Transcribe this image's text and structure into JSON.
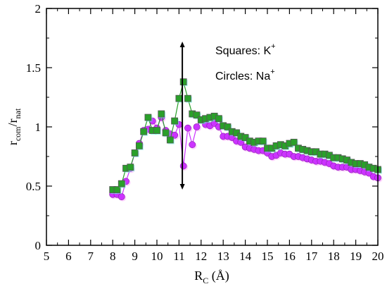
{
  "chart_data": {
    "type": "scatter",
    "xlabel": "R",
    "xlabel_sub": "C",
    "xlabel_unit": " (Å)",
    "ylabel_main": "r",
    "ylabel_sub1": "com",
    "ylabel_sep": "/r",
    "ylabel_sub2": "nat",
    "xlim": [
      5,
      20
    ],
    "ylim": [
      0,
      2
    ],
    "xticks": [
      "5",
      "6",
      "7",
      "8",
      "9",
      "10",
      "11",
      "12",
      "13",
      "14",
      "15",
      "16",
      "17",
      "18",
      "19",
      "20"
    ],
    "yticks": [
      "0",
      "0.5",
      "1",
      "1.5",
      "2"
    ],
    "grid": false,
    "legend": "none",
    "annotations": {
      "squares_label": "Squares: K",
      "squares_sup": "+",
      "circles_label": "Circles: Na",
      "circles_sup": "+"
    },
    "arrow": {
      "x": 11.15,
      "y_top": 1.72,
      "y_bottom": 0.47
    },
    "series": [
      {
        "marker": "square",
        "color": "#2aa02a",
        "edge": "#555555",
        "shadow": "#66ffdd",
        "x": [
          8.0,
          8.2,
          8.4,
          8.6,
          8.8,
          9.0,
          9.2,
          9.4,
          9.6,
          9.8,
          10.0,
          10.2,
          10.4,
          10.6,
          10.8,
          11.0,
          11.2,
          11.4,
          11.6,
          11.8,
          12.0,
          12.2,
          12.4,
          12.6,
          12.8,
          13.0,
          13.2,
          13.4,
          13.6,
          13.8,
          14.0,
          14.2,
          14.4,
          14.6,
          14.8,
          15.0,
          15.2,
          15.4,
          15.6,
          15.8,
          16.0,
          16.2,
          16.4,
          16.6,
          16.8,
          17.0,
          17.2,
          17.4,
          17.6,
          17.8,
          18.0,
          18.2,
          18.4,
          18.6,
          18.8,
          19.0,
          19.2,
          19.4,
          19.6,
          19.8,
          20.0
        ],
        "y": [
          0.47,
          0.47,
          0.52,
          0.65,
          0.66,
          0.78,
          0.84,
          0.96,
          1.08,
          0.97,
          0.97,
          1.11,
          0.95,
          0.89,
          1.05,
          1.24,
          1.38,
          1.24,
          1.11,
          1.1,
          1.06,
          1.07,
          1.08,
          1.09,
          1.07,
          1.01,
          1.0,
          0.96,
          0.95,
          0.92,
          0.91,
          0.88,
          0.87,
          0.88,
          0.88,
          0.82,
          0.82,
          0.84,
          0.85,
          0.84,
          0.86,
          0.87,
          0.82,
          0.81,
          0.8,
          0.79,
          0.79,
          0.77,
          0.77,
          0.76,
          0.74,
          0.74,
          0.73,
          0.72,
          0.7,
          0.69,
          0.69,
          0.68,
          0.66,
          0.65,
          0.64
        ]
      },
      {
        "marker": "circle",
        "color": "#cc33ff",
        "edge": "#8822aa",
        "shadow": "#ffaaff",
        "x": [
          8.0,
          8.2,
          8.4,
          8.6,
          8.8,
          9.0,
          9.2,
          9.4,
          9.6,
          9.8,
          10.0,
          10.2,
          10.4,
          10.6,
          10.8,
          11.0,
          11.2,
          11.4,
          11.6,
          11.8,
          12.0,
          12.2,
          12.4,
          12.6,
          12.8,
          13.0,
          13.2,
          13.4,
          13.6,
          13.8,
          14.0,
          14.2,
          14.4,
          14.6,
          14.8,
          15.0,
          15.2,
          15.4,
          15.6,
          15.8,
          16.0,
          16.2,
          16.4,
          16.6,
          16.8,
          17.0,
          17.2,
          17.4,
          17.6,
          17.8,
          18.0,
          18.2,
          18.4,
          18.6,
          18.8,
          19.0,
          19.2,
          19.4,
          19.6,
          19.8,
          20.0
        ],
        "y": [
          0.43,
          0.43,
          0.41,
          0.54,
          0.65,
          0.78,
          0.86,
          0.97,
          0.98,
          1.05,
          0.99,
          1.08,
          0.97,
          0.94,
          0.93,
          1.02,
          0.67,
          0.99,
          0.85,
          1.0,
          1.06,
          1.02,
          1.01,
          1.03,
          1.0,
          0.92,
          0.92,
          0.91,
          0.88,
          0.87,
          0.83,
          0.82,
          0.81,
          0.8,
          0.8,
          0.78,
          0.75,
          0.76,
          0.78,
          0.77,
          0.77,
          0.75,
          0.75,
          0.74,
          0.73,
          0.72,
          0.71,
          0.71,
          0.7,
          0.69,
          0.67,
          0.66,
          0.66,
          0.66,
          0.64,
          0.64,
          0.63,
          0.62,
          0.61,
          0.58,
          0.57
        ]
      }
    ]
  }
}
